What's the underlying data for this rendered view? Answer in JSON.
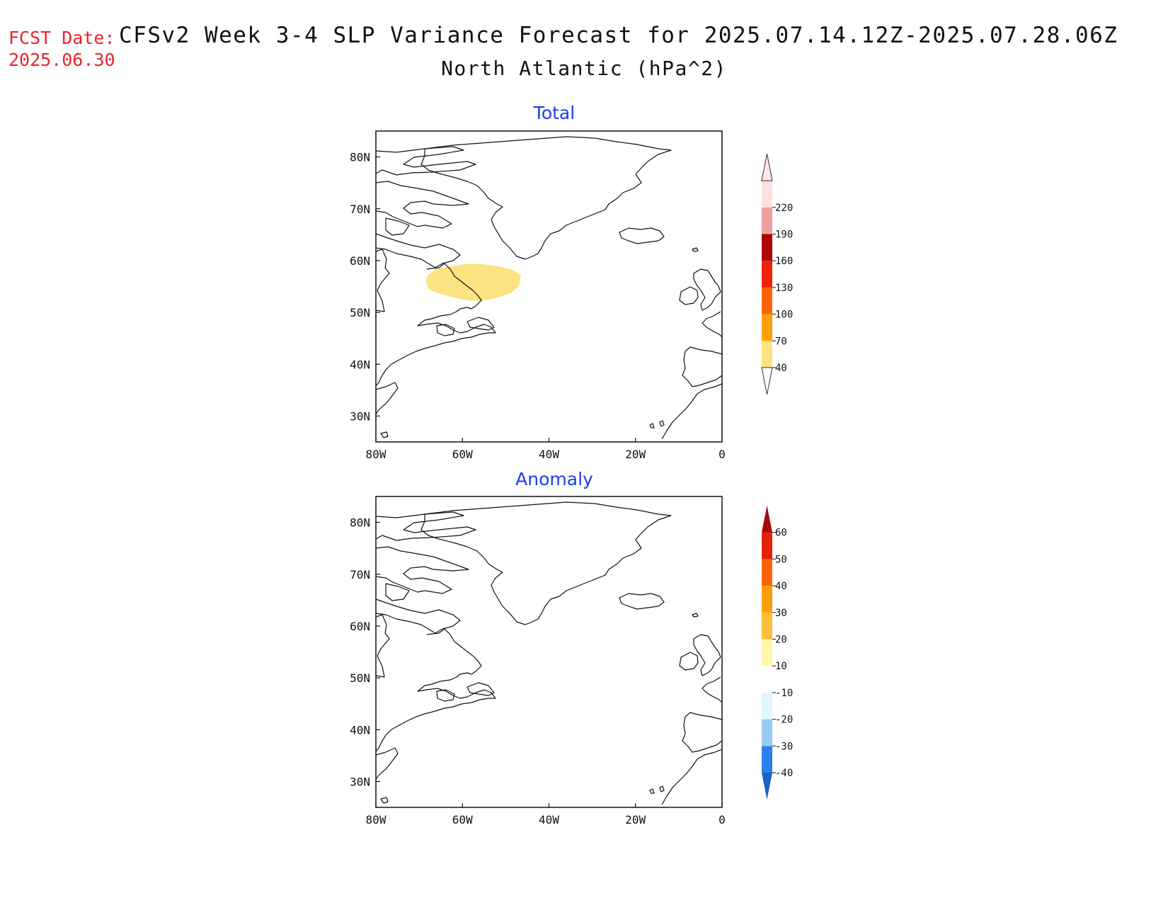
{
  "header": {
    "fcst_label": "FCST Date:",
    "fcst_date": "2025.06.30",
    "title_line1": "CFSv2 Week 3-4 SLP Variance Forecast for 2025.07.14.12Z-2025.07.28.06Z",
    "title_line2": "North Atlantic (hPa^2)"
  },
  "colors": {
    "fcst": "#e8262c",
    "panel_title": "#1c3cf0",
    "shading": "#fce281"
  },
  "map_extent": {
    "lon_min": -80,
    "lon_max": 0,
    "lat_min": 25,
    "lat_max": 85
  },
  "axis_ticks": {
    "lat": [
      "30N",
      "40N",
      "50N",
      "60N",
      "70N",
      "80N"
    ],
    "lat_values": [
      30,
      40,
      50,
      60,
      70,
      80
    ],
    "lon": [
      "80W",
      "60W",
      "40W",
      "20W",
      "0"
    ],
    "lon_values": [
      -80,
      -60,
      -40,
      -20,
      0
    ]
  },
  "panels": [
    {
      "title": "Total",
      "shaded_region": {
        "level": "40-70",
        "lon_range": [
          -68,
          -47
        ],
        "lat_range": [
          52.5,
          59.5
        ]
      },
      "colorbar": {
        "labels": [
          "40",
          "70",
          "100",
          "130",
          "160",
          "190",
          "220"
        ],
        "colors": [
          "#fce281",
          "#fca10c",
          "#fb6405",
          "#f0210a",
          "#a80808",
          "#f0a0a0",
          "#fde0e0"
        ],
        "extend_low_color": "#ffffff",
        "extend_high_color": "#fde8e8"
      }
    },
    {
      "title": "Anomaly",
      "shaded_region": null,
      "colorbar": {
        "labels": [
          "-40",
          "-30",
          "-20",
          "-10",
          "10",
          "20",
          "30",
          "40",
          "50",
          "60"
        ],
        "colors": [
          "#2a82e8",
          "#98ccf4",
          "#dff6fc",
          "#ffffff",
          "#fff6a8",
          "#fdbe3a",
          "#fba00c",
          "#fb6405",
          "#e52008"
        ],
        "extend_low_color": "#1a62c8",
        "extend_high_color": "#a80808"
      }
    }
  ]
}
